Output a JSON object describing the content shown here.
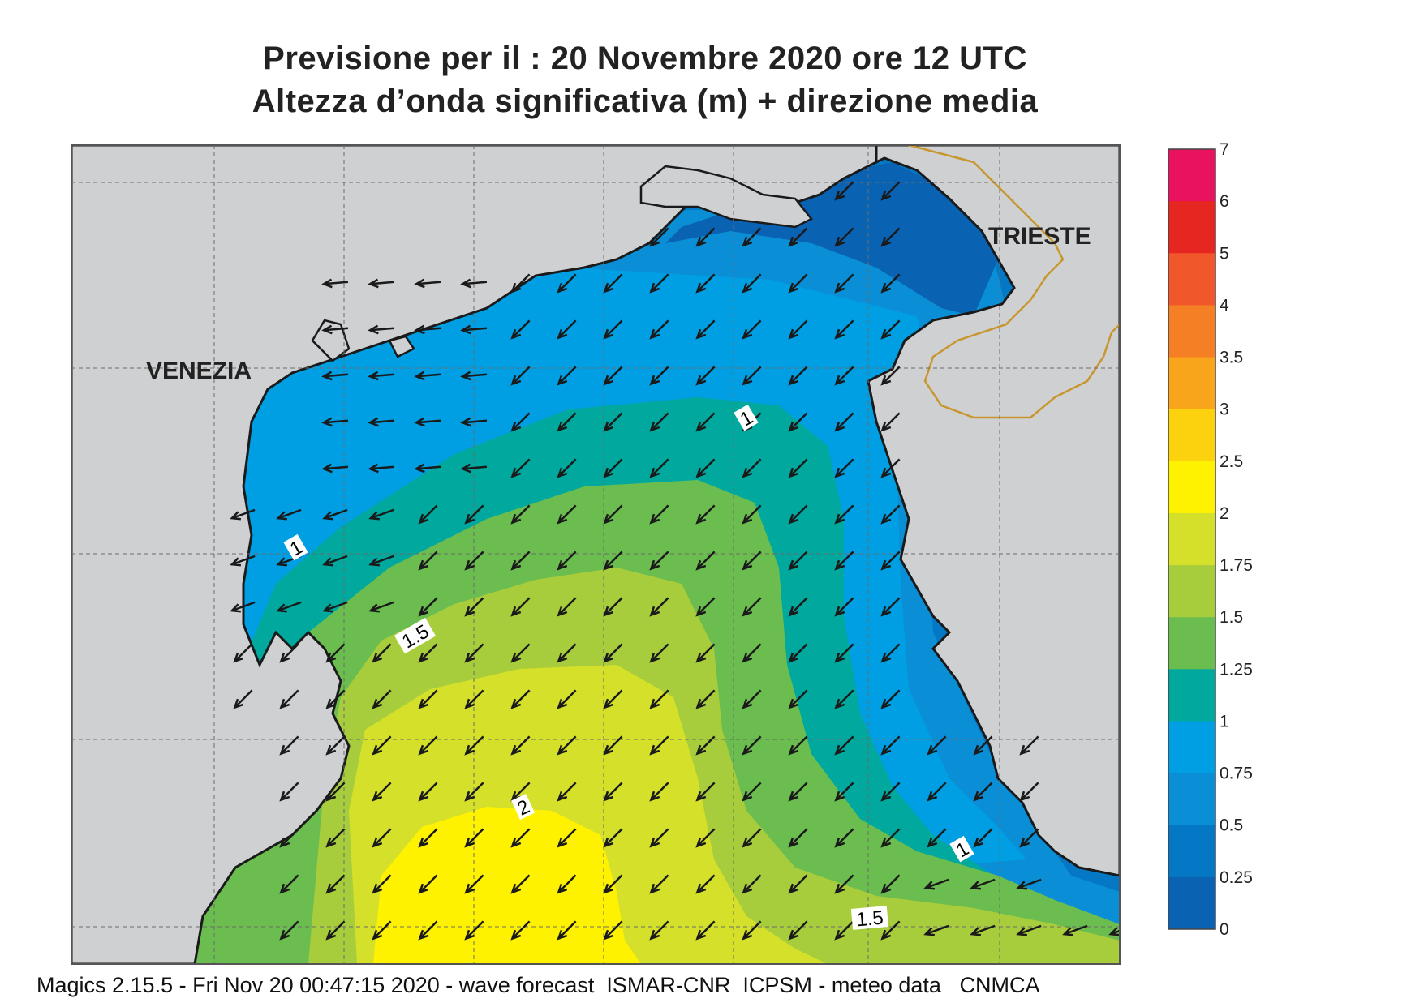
{
  "title": {
    "line1": "Previsione per il  :  20 Novembre  2020   ore 12 UTC",
    "line2": "Altezza d’onda significativa (m) + direzione media"
  },
  "cities": [
    {
      "name": "VENEZIA"
    },
    {
      "name": "TRIESTE"
    }
  ],
  "contour_labels": [
    "1",
    "1",
    "1.5",
    "2",
    "1",
    "1.5"
  ],
  "legend": {
    "ticks": [
      "7",
      "6",
      "5",
      "4",
      "3.5",
      "3",
      "2.5",
      "2",
      "1.75",
      "1.5",
      "1.25",
      "1",
      "0.75",
      "0.5",
      "0.25",
      "0"
    ],
    "colors": [
      "#e8125f",
      "#e62620",
      "#f0572a",
      "#f57f24",
      "#f9a51b",
      "#fcd20f",
      "#fff200",
      "#d4e02a",
      "#a8cd3c",
      "#6bbd4f",
      "#00a89d",
      "#009fe3",
      "#0a8fd6",
      "#0578c5",
      "#0a62b3"
    ]
  },
  "colors": {
    "land": "#cfd0d2",
    "coast": "#1a1a1a",
    "border": "#c8962e",
    "arrow": "#1a1a1a"
  },
  "footer": "Magics 2.15.5 - Fri Nov 20 00:47:15 2020 - wave forecast  ISMAR-CNR  ICPSM - meteo data   CNMCA"
}
